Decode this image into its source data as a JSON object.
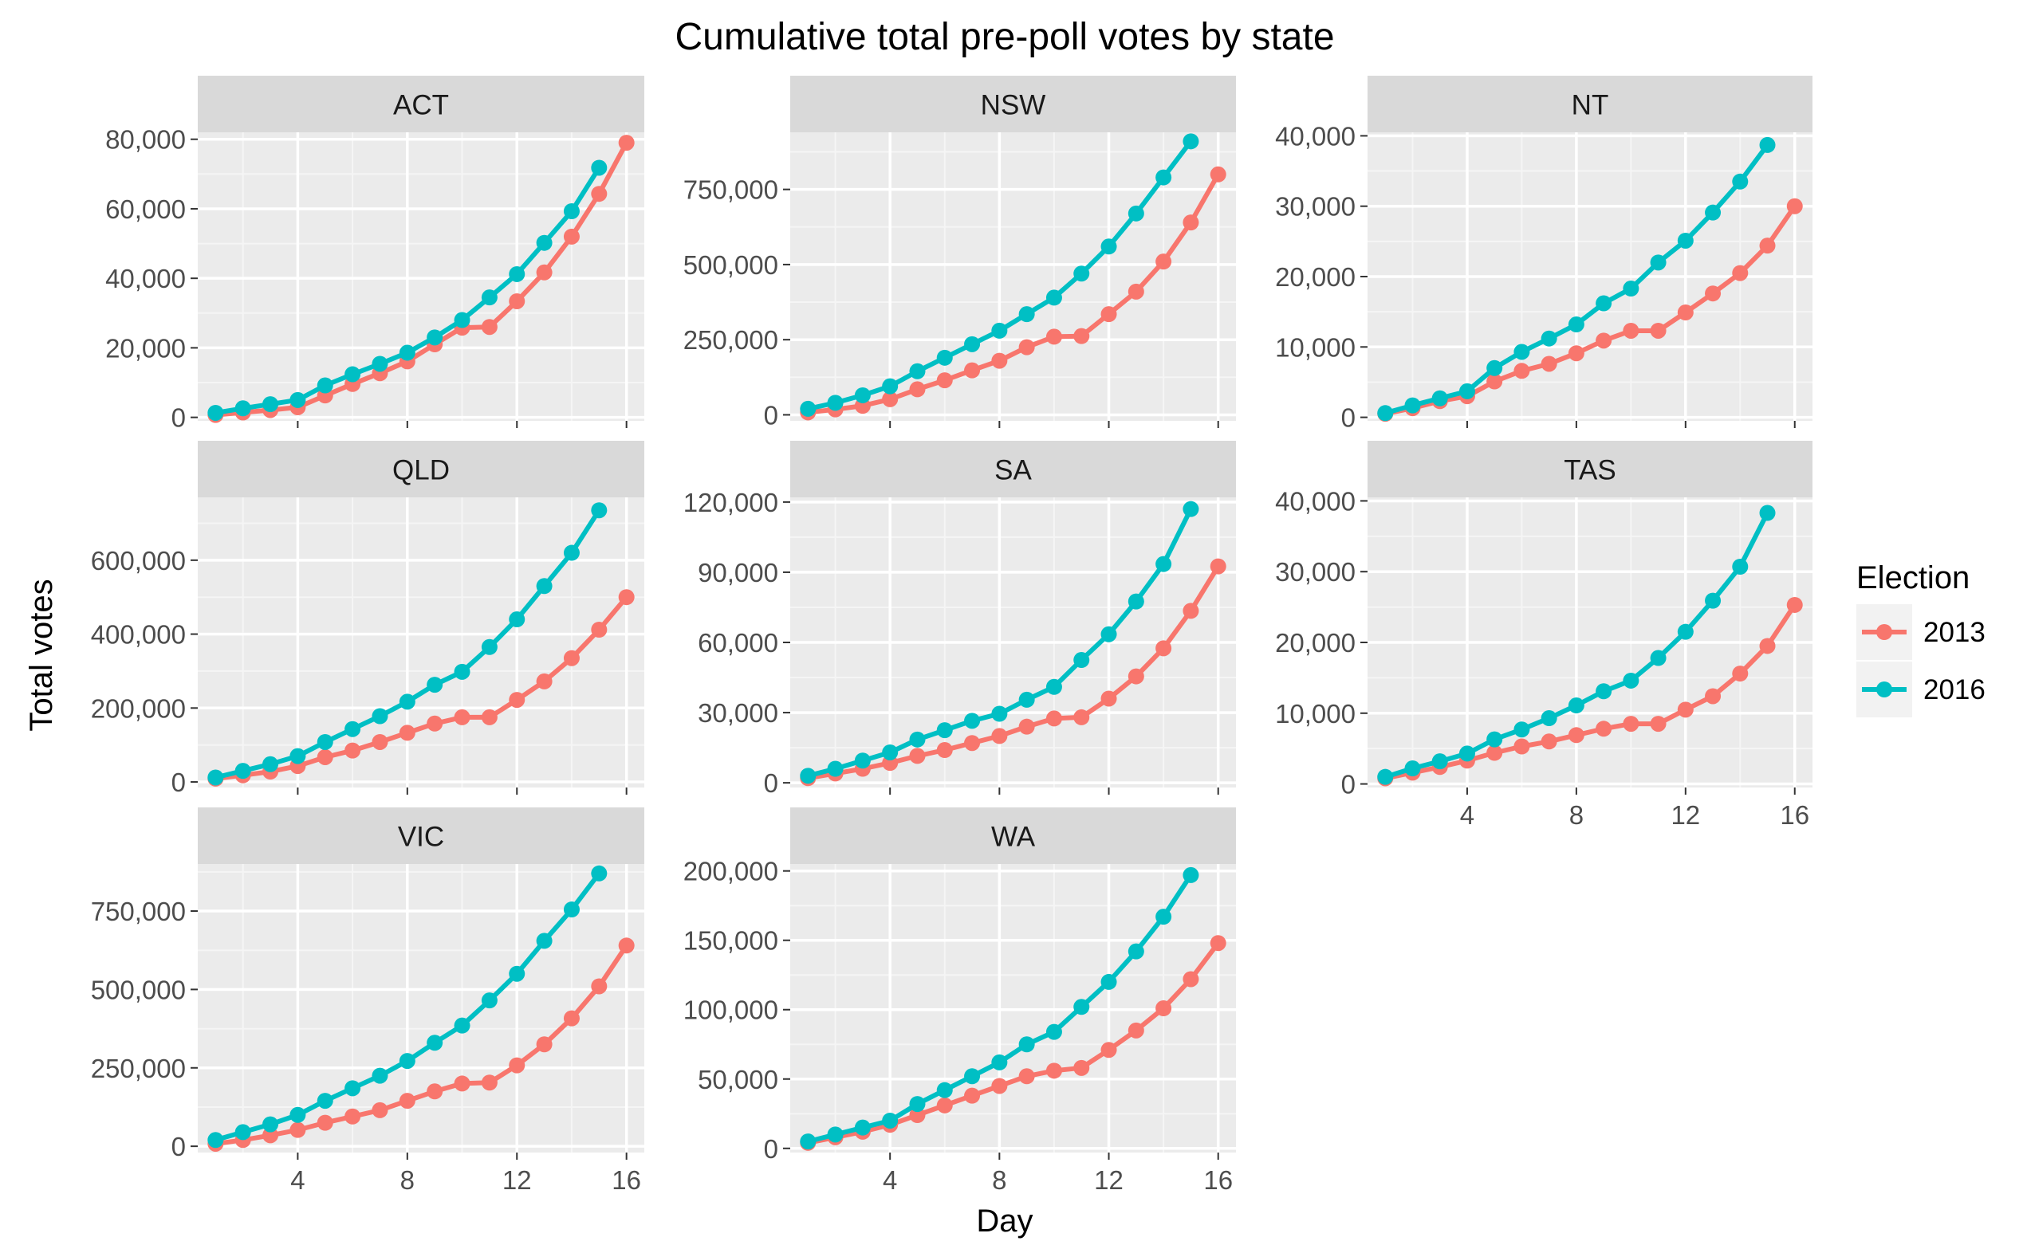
{
  "chart_data": {
    "type": "line",
    "title": "Cumulative total pre-poll votes by state",
    "xlabel": "Day",
    "ylabel": "Total votes",
    "x_ticks": [
      4,
      8,
      12,
      16
    ],
    "grid": true,
    "legend": {
      "title": "Election",
      "position": "right",
      "entries": [
        {
          "label": "2013",
          "color": "#F8766D"
        },
        {
          "label": "2016",
          "color": "#00BFC4"
        }
      ]
    },
    "panels": [
      {
        "name": "ACT",
        "y_ticks": [
          0,
          20000,
          40000,
          60000,
          80000
        ],
        "y_tick_labels": [
          "0",
          "20,000",
          "40,000",
          "60,000",
          "80,000"
        ],
        "ylim": [
          -1000,
          82000
        ],
        "series": [
          {
            "name": "2013",
            "x": [
              1,
              2,
              3,
              4,
              5,
              6,
              7,
              8,
              9,
              10,
              11,
              12,
              13,
              14,
              15,
              16
            ],
            "y": [
              700,
              1400,
              2100,
              2900,
              6300,
              9600,
              12700,
              16100,
              21000,
              25800,
              26000,
              33400,
              41700,
              52000,
              64300,
              79000
            ]
          },
          {
            "name": "2016",
            "x": [
              1,
              2,
              3,
              4,
              5,
              6,
              7,
              8,
              9,
              10,
              11,
              12,
              13,
              14,
              15
            ],
            "y": [
              1300,
              2600,
              3800,
              5000,
              9200,
              12400,
              15400,
              18600,
              23000,
              28000,
              34500,
              41200,
              50200,
              59300,
              71800
            ]
          }
        ]
      },
      {
        "name": "NSW",
        "y_ticks": [
          0,
          250000,
          500000,
          750000
        ],
        "y_tick_labels": [
          "0",
          "250,000",
          "500,000",
          "750,000"
        ],
        "ylim": [
          -20000,
          940000
        ],
        "series": [
          {
            "name": "2013",
            "x": [
              1,
              2,
              3,
              4,
              5,
              6,
              7,
              8,
              9,
              10,
              11,
              12,
              13,
              14,
              15,
              16
            ],
            "y": [
              8000,
              18000,
              30000,
              52000,
              85000,
              115000,
              148000,
              180000,
              225000,
              260000,
              262000,
              335000,
              410000,
              510000,
              640000,
              800000
            ]
          },
          {
            "name": "2016",
            "x": [
              1,
              2,
              3,
              4,
              5,
              6,
              7,
              8,
              9,
              10,
              11,
              12,
              13,
              14,
              15
            ],
            "y": [
              20000,
              40000,
              65000,
              95000,
              145000,
              190000,
              235000,
              280000,
              335000,
              390000,
              470000,
              560000,
              670000,
              790000,
              910000
            ]
          }
        ]
      },
      {
        "name": "NT",
        "y_ticks": [
          0,
          10000,
          20000,
          30000,
          40000
        ],
        "y_tick_labels": [
          "0",
          "10,000",
          "20,000",
          "30,000",
          "40,000"
        ],
        "ylim": [
          -500,
          40500
        ],
        "series": [
          {
            "name": "2013",
            "x": [
              1,
              2,
              3,
              4,
              5,
              6,
              7,
              8,
              9,
              10,
              11,
              12,
              13,
              14,
              15,
              16
            ],
            "y": [
              500,
              1300,
              2300,
              3000,
              5100,
              6600,
              7600,
              9100,
              10900,
              12300,
              12300,
              14900,
              17600,
              20500,
              24400,
              30000
            ]
          },
          {
            "name": "2016",
            "x": [
              1,
              2,
              3,
              4,
              5,
              6,
              7,
              8,
              9,
              10,
              11,
              12,
              13,
              14,
              15
            ],
            "y": [
              600,
              1700,
              2700,
              3700,
              7000,
              9300,
              11200,
              13200,
              16200,
              18300,
              22000,
              25100,
              29100,
              33500,
              38700
            ]
          }
        ]
      },
      {
        "name": "QLD",
        "y_ticks": [
          0,
          200000,
          400000,
          600000
        ],
        "y_tick_labels": [
          "0",
          "200,000",
          "400,000",
          "600,000"
        ],
        "ylim": [
          -15000,
          770000
        ],
        "series": [
          {
            "name": "2013",
            "x": [
              1,
              2,
              3,
              4,
              5,
              6,
              7,
              8,
              9,
              10,
              11,
              12,
              13,
              14,
              15,
              16
            ],
            "y": [
              9000,
              18000,
              28000,
              43000,
              67000,
              85000,
              108000,
              133000,
              158000,
              175000,
              175000,
              222000,
              272000,
              335000,
              412000,
              500000
            ]
          },
          {
            "name": "2016",
            "x": [
              1,
              2,
              3,
              4,
              5,
              6,
              7,
              8,
              9,
              10,
              11,
              12,
              13,
              14,
              15
            ],
            "y": [
              12000,
              30000,
              48000,
              70000,
              108000,
              143000,
              178000,
              217000,
              263000,
              298000,
              365000,
              440000,
              530000,
              620000,
              735000
            ]
          }
        ]
      },
      {
        "name": "SA",
        "y_ticks": [
          0,
          30000,
          60000,
          90000,
          120000
        ],
        "y_tick_labels": [
          "0",
          "30,000",
          "60,000",
          "90,000",
          "120,000"
        ],
        "ylim": [
          -2000,
          122000
        ],
        "series": [
          {
            "name": "2013",
            "x": [
              1,
              2,
              3,
              4,
              5,
              6,
              7,
              8,
              9,
              10,
              11,
              12,
              13,
              14,
              15,
              16
            ],
            "y": [
              2000,
              4000,
              6000,
              8500,
              11500,
              14000,
              17000,
              20000,
              24000,
              27500,
              28000,
              36000,
              45500,
              57500,
              73500,
              92500
            ]
          },
          {
            "name": "2016",
            "x": [
              1,
              2,
              3,
              4,
              5,
              6,
              7,
              8,
              9,
              10,
              11,
              12,
              13,
              14,
              15
            ],
            "y": [
              3000,
              6000,
              9500,
              13000,
              18500,
              22500,
              26500,
              29500,
              35500,
              41000,
              52500,
              63500,
              77500,
              93500,
              117000
            ]
          }
        ]
      },
      {
        "name": "TAS",
        "y_ticks": [
          0,
          10000,
          20000,
          30000,
          40000
        ],
        "y_tick_labels": [
          "0",
          "10,000",
          "20,000",
          "30,000",
          "40,000"
        ],
        "ylim": [
          -500,
          40500
        ],
        "series": [
          {
            "name": "2013",
            "x": [
              1,
              2,
              3,
              4,
              5,
              6,
              7,
              8,
              9,
              10,
              11,
              12,
              13,
              14,
              15,
              16
            ],
            "y": [
              800,
              1600,
              2400,
              3300,
              4400,
              5300,
              6000,
              6900,
              7800,
              8500,
              8500,
              10500,
              12400,
              15600,
              19500,
              25300
            ]
          },
          {
            "name": "2016",
            "x": [
              1,
              2,
              3,
              4,
              5,
              6,
              7,
              8,
              9,
              10,
              11,
              12,
              13,
              14,
              15
            ],
            "y": [
              1000,
              2200,
              3200,
              4300,
              6300,
              7700,
              9300,
              11100,
              13100,
              14600,
              17800,
              21500,
              25900,
              30700,
              38300
            ]
          }
        ]
      },
      {
        "name": "VIC",
        "y_ticks": [
          0,
          250000,
          500000,
          750000
        ],
        "y_tick_labels": [
          "0",
          "250,000",
          "500,000",
          "750,000"
        ],
        "ylim": [
          -20000,
          900000
        ],
        "series": [
          {
            "name": "2013",
            "x": [
              1,
              2,
              3,
              4,
              5,
              6,
              7,
              8,
              9,
              10,
              11,
              12,
              13,
              14,
              15,
              16
            ],
            "y": [
              8000,
              20000,
              35000,
              52000,
              75000,
              95000,
              115000,
              145000,
              175000,
              200000,
              203000,
              258000,
              325000,
              408000,
              510000,
              640000
            ]
          },
          {
            "name": "2016",
            "x": [
              1,
              2,
              3,
              4,
              5,
              6,
              7,
              8,
              9,
              10,
              11,
              12,
              13,
              14,
              15
            ],
            "y": [
              20000,
              45000,
              70000,
              100000,
              145000,
              185000,
              225000,
              272000,
              330000,
              385000,
              465000,
              550000,
              655000,
              755000,
              870000
            ]
          }
        ]
      },
      {
        "name": "WA",
        "y_ticks": [
          0,
          50000,
          100000,
          150000,
          200000
        ],
        "y_tick_labels": [
          "0",
          "50,000",
          "100,000",
          "150,000",
          "200,000"
        ],
        "ylim": [
          -3000,
          205000
        ],
        "series": [
          {
            "name": "2013",
            "x": [
              1,
              2,
              3,
              4,
              5,
              6,
              7,
              8,
              9,
              10,
              11,
              12,
              13,
              14,
              15,
              16
            ],
            "y": [
              4000,
              8000,
              12000,
              17000,
              24000,
              31000,
              38000,
              45000,
              52000,
              56000,
              58000,
              71000,
              85000,
              101000,
              122000,
              148000
            ]
          },
          {
            "name": "2016",
            "x": [
              1,
              2,
              3,
              4,
              5,
              6,
              7,
              8,
              9,
              10,
              11,
              12,
              13,
              14,
              15
            ],
            "y": [
              5000,
              10000,
              15000,
              20000,
              32000,
              42000,
              52000,
              62000,
              75000,
              84000,
              102000,
              120000,
              142000,
              167000,
              197000
            ]
          }
        ]
      }
    ]
  }
}
